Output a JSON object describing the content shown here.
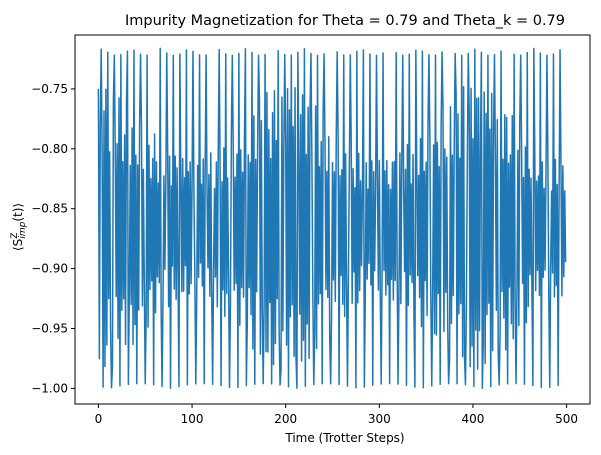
{
  "chart_data": {
    "type": "line",
    "title": "Impurity Magnetization for Theta = 0.79 and Theta_k = 0.79",
    "xlabel": "Time (Trotter Steps)",
    "ylabel_parts": {
      "base": "⟨S",
      "sup": "Z",
      "sub": "imp",
      "tail": "(t)⟩"
    },
    "xlim": [
      -25,
      525
    ],
    "ylim": [
      -1.013,
      -0.705
    ],
    "xticks": [
      0,
      100,
      200,
      300,
      400,
      500
    ],
    "xtick_labels": [
      "0",
      "100",
      "200",
      "300",
      "400",
      "500"
    ],
    "yticks": [
      -1.0,
      -0.95,
      -0.9,
      -0.85,
      -0.8,
      -0.75
    ],
    "ytick_labels": [
      "−1.00",
      "−0.95",
      "−0.90",
      "−0.85",
      "−0.80",
      "−0.75"
    ],
    "grid": false,
    "series": [
      {
        "color": "#1f77b4",
        "x_start": 0,
        "x_end": 499,
        "x_step": 1,
        "y_min": -1.0,
        "y_max": -0.716,
        "y_mean": -0.857,
        "description_of_signal": "fast oscillation between about -1.00 and -0.716 with an envelope whose inner band is narrowest near t=100 and t=300"
      }
    ]
  }
}
